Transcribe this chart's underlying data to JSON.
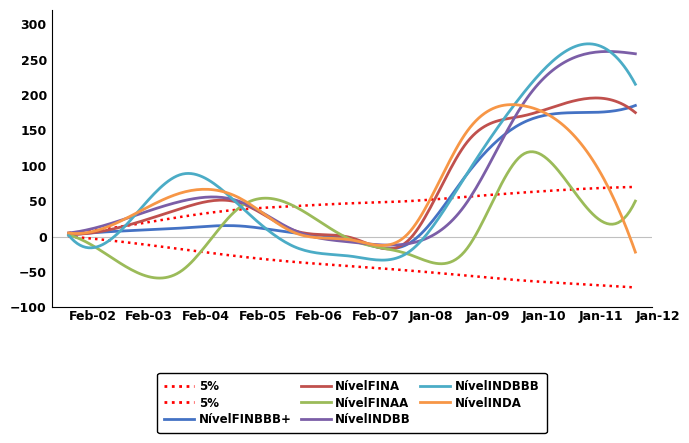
{
  "title": "",
  "x_labels": [
    "Feb-02",
    "Feb-03",
    "Feb-04",
    "Feb-05",
    "Feb-06",
    "Feb-07",
    "Jan-08",
    "Jan-09",
    "Jan-10",
    "Jan-11",
    "Jan-12"
  ],
  "ylim": [
    -100,
    320
  ],
  "yticks": [
    -100,
    -50,
    0,
    50,
    100,
    150,
    200,
    250,
    300
  ],
  "series": {
    "5pct_lower": {
      "color": "#FF0000",
      "linestyle": "dotted",
      "linewidth": 1.8,
      "label": "5%",
      "values": [
        0,
        -8,
        -18,
        -28,
        -36,
        -42,
        -48,
        -55,
        -62,
        -67,
        -72
      ]
    },
    "5pct_upper": {
      "color": "#FF0000",
      "linestyle": "dotted",
      "linewidth": 1.8,
      "label": "5%",
      "values": [
        5,
        15,
        28,
        38,
        43,
        47,
        50,
        56,
        62,
        67,
        70
      ]
    },
    "NivelFINBBBp": {
      "color": "#4472C4",
      "linestyle": "solid",
      "linewidth": 2.0,
      "label": "NívelFINBBB+",
      "values": [
        2,
        8,
        12,
        15,
        5,
        -5,
        -10,
        85,
        160,
        175,
        185
      ]
    },
    "NivelFINA": {
      "color": "#C0504D",
      "linestyle": "solid",
      "linewidth": 2.0,
      "label": "NívelFINA",
      "values": [
        3,
        15,
        40,
        48,
        8,
        -2,
        -5,
        130,
        170,
        193,
        175
      ]
    },
    "NivelFINAA": {
      "color": "#9BBB59",
      "linestyle": "solid",
      "linewidth": 2.0,
      "label": "NívelFINAA",
      "values": [
        2,
        -42,
        -48,
        40,
        42,
        -5,
        -25,
        -20,
        115,
        55,
        50
      ]
    },
    "NivelINDBB": {
      "color": "#7B5EA7",
      "linestyle": "solid",
      "linewidth": 2.0,
      "label": "NívelINDBB",
      "values": [
        5,
        25,
        50,
        50,
        8,
        -8,
        -10,
        45,
        185,
        255,
        258
      ]
    },
    "NivelINDBBB": {
      "color": "#4BACC6",
      "linestyle": "solid",
      "linewidth": 2.0,
      "label": "NívelINDBBB",
      "values": [
        2,
        15,
        88,
        45,
        -15,
        -28,
        -22,
        85,
        200,
        270,
        215
      ]
    },
    "NivelINDA": {
      "color": "#F79646",
      "linestyle": "solid",
      "linewidth": 2.0,
      "label": "NívelINDA",
      "values": [
        5,
        25,
        62,
        55,
        5,
        -5,
        5,
        145,
        185,
        135,
        -22
      ]
    }
  },
  "legend_entries": [
    {
      "label": "5%",
      "color": "#FF0000",
      "linestyle": "dotted",
      "row": 0,
      "col": 0
    },
    {
      "label": "5%",
      "color": "#FF0000",
      "linestyle": "dotted",
      "row": 0,
      "col": 1
    },
    {
      "label": "NívelFINBBB+",
      "color": "#4472C4",
      "linestyle": "solid",
      "row": 0,
      "col": 2
    },
    {
      "label": "NívelFINA",
      "color": "#C0504D",
      "linestyle": "solid",
      "row": 1,
      "col": 0
    },
    {
      "label": "NívelFINAA",
      "color": "#9BBB59",
      "linestyle": "solid",
      "row": 1,
      "col": 1
    },
    {
      "label": "NívelINDBB",
      "color": "#7B5EA7",
      "linestyle": "solid",
      "row": 1,
      "col": 2
    },
    {
      "label": "NívelINDBBB",
      "color": "#4BACC6",
      "linestyle": "solid",
      "row": 2,
      "col": 0
    },
    {
      "label": "NívelINDA",
      "color": "#F79646",
      "linestyle": "solid",
      "row": 2,
      "col": 1
    }
  ],
  "background_color": "#FFFFFF",
  "plot_bg_color": "#FFFFFF",
  "grid_color": "#C0C0C0",
  "legend_fontsize": 8.5,
  "tick_fontsize": 9.0,
  "figsize": [
    6.75,
    4.44
  ],
  "dpi": 100,
  "smooth_points": 200
}
